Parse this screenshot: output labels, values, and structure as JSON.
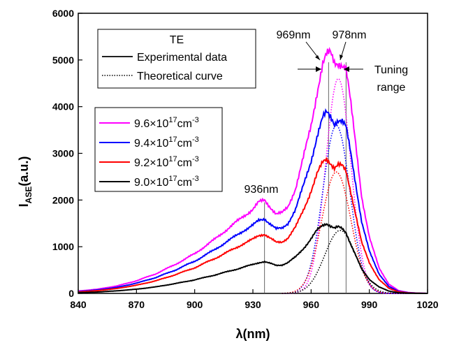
{
  "chart_data": {
    "type": "line",
    "xlabel": "λ(nm)",
    "ylabel": "I_ASE(a.u.)",
    "xlim": [
      840,
      1020
    ],
    "ylim": [
      0,
      6000
    ],
    "xticks": [
      840,
      870,
      900,
      930,
      960,
      990,
      1020
    ],
    "yticks": [
      0,
      1000,
      2000,
      3000,
      4000,
      5000,
      6000
    ],
    "legend_mode": {
      "title": "TE",
      "entries": [
        {
          "label": "Experimental data",
          "style": "solid"
        },
        {
          "label": "Theoretical curve",
          "style": "dotted"
        }
      ]
    },
    "legend_density": {
      "entries": [
        {
          "label": "9.6×10",
          "sup": "17",
          "unit": "cm",
          "unit_sup": "-3",
          "color": "#ff00ff"
        },
        {
          "label": "9.4×10",
          "sup": "17",
          "unit": "cm",
          "unit_sup": "-3",
          "color": "#0000ff"
        },
        {
          "label": "9.2×10",
          "sup": "17",
          "unit": "cm",
          "unit_sup": "-3",
          "color": "#ff0000"
        },
        {
          "label": "9.0×10",
          "sup": "17",
          "unit": "cm",
          "unit_sup": "-3",
          "color": "#000000"
        }
      ]
    },
    "annotations": {
      "peak_936": "936nm",
      "peak_969": "969nm",
      "peak_978": "978nm",
      "tuning_line1": "Tuning",
      "tuning_line2": "range"
    },
    "reference_lines_x": [
      936,
      969,
      978
    ],
    "experimental_series": [
      {
        "name": "9.6×10^17cm^-3",
        "color": "#ff00ff",
        "x": [
          840,
          850,
          860,
          870,
          880,
          890,
          900,
          910,
          920,
          925,
          930,
          933,
          936,
          939,
          942,
          945,
          948,
          952,
          956,
          960,
          963,
          966,
          968,
          970,
          972,
          974,
          976,
          978,
          980,
          983,
          986,
          990,
          995,
          1000,
          1005,
          1010,
          1015,
          1020
        ],
        "y": [
          50,
          90,
          160,
          270,
          420,
          620,
          850,
          1150,
          1480,
          1650,
          1800,
          1950,
          2000,
          1850,
          1700,
          1720,
          1850,
          2250,
          2900,
          3600,
          4300,
          4900,
          5100,
          5150,
          4950,
          4950,
          4900,
          4800,
          4200,
          3200,
          2100,
          1200,
          550,
          200,
          60,
          20,
          5,
          0
        ]
      },
      {
        "name": "9.4×10^17cm^-3",
        "color": "#0000ff",
        "x": [
          840,
          850,
          860,
          870,
          880,
          890,
          900,
          910,
          920,
          925,
          930,
          933,
          936,
          939,
          942,
          945,
          948,
          952,
          956,
          960,
          963,
          966,
          968,
          970,
          972,
          974,
          976,
          978,
          980,
          983,
          986,
          990,
          995,
          1000,
          1005,
          1010,
          1015,
          1020
        ],
        "y": [
          40,
          75,
          130,
          220,
          340,
          500,
          690,
          930,
          1200,
          1340,
          1460,
          1560,
          1600,
          1490,
          1380,
          1390,
          1500,
          1800,
          2300,
          2850,
          3350,
          3750,
          3870,
          3800,
          3650,
          3720,
          3680,
          3550,
          3100,
          2350,
          1550,
          900,
          420,
          150,
          45,
          15,
          4,
          0
        ]
      },
      {
        "name": "9.2×10^17cm^-3",
        "color": "#ff0000",
        "x": [
          840,
          850,
          860,
          870,
          880,
          890,
          900,
          910,
          920,
          925,
          930,
          933,
          936,
          939,
          942,
          945,
          948,
          952,
          956,
          960,
          963,
          966,
          968,
          970,
          972,
          974,
          976,
          978,
          980,
          983,
          986,
          990,
          995,
          1000,
          1005,
          1010,
          1015,
          1020
        ],
        "y": [
          30,
          60,
          105,
          175,
          270,
          400,
          550,
          740,
          950,
          1060,
          1160,
          1240,
          1270,
          1180,
          1090,
          1100,
          1190,
          1420,
          1780,
          2200,
          2550,
          2800,
          2880,
          2800,
          2700,
          2760,
          2720,
          2600,
          2250,
          1700,
          1100,
          650,
          300,
          110,
          35,
          10,
          3,
          0
        ]
      },
      {
        "name": "9.0×10^17cm^-3",
        "color": "#000000",
        "x": [
          840,
          850,
          860,
          870,
          880,
          890,
          900,
          910,
          920,
          925,
          930,
          933,
          936,
          939,
          942,
          945,
          948,
          952,
          956,
          960,
          963,
          966,
          968,
          970,
          972,
          974,
          976,
          978,
          980,
          983,
          986,
          990,
          995,
          1000,
          1005,
          1010,
          1015,
          1020
        ],
        "y": [
          15,
          30,
          55,
          90,
          140,
          210,
          290,
          390,
          500,
          560,
          620,
          660,
          680,
          640,
          600,
          610,
          660,
          780,
          960,
          1170,
          1350,
          1460,
          1500,
          1450,
          1400,
          1420,
          1380,
          1300,
          1100,
          820,
          520,
          300,
          140,
          50,
          15,
          5,
          1,
          0
        ]
      }
    ],
    "theoretical_series": [
      {
        "name": "9.6×10^17cm^-3",
        "color": "#ff00ff",
        "peak_x": 974,
        "peak_y": 4600,
        "width": 6.5
      },
      {
        "name": "9.4×10^17cm^-3",
        "color": "#0000ff",
        "peak_x": 973,
        "peak_y": 3600,
        "width": 7.0
      },
      {
        "name": "9.2×10^17cm^-3",
        "color": "#ff0000",
        "peak_x": 973,
        "peak_y": 2600,
        "width": 7.5
      },
      {
        "name": "9.0×10^17cm^-3",
        "color": "#000000",
        "peak_x": 975,
        "peak_y": 1350,
        "width": 8.0
      }
    ]
  }
}
